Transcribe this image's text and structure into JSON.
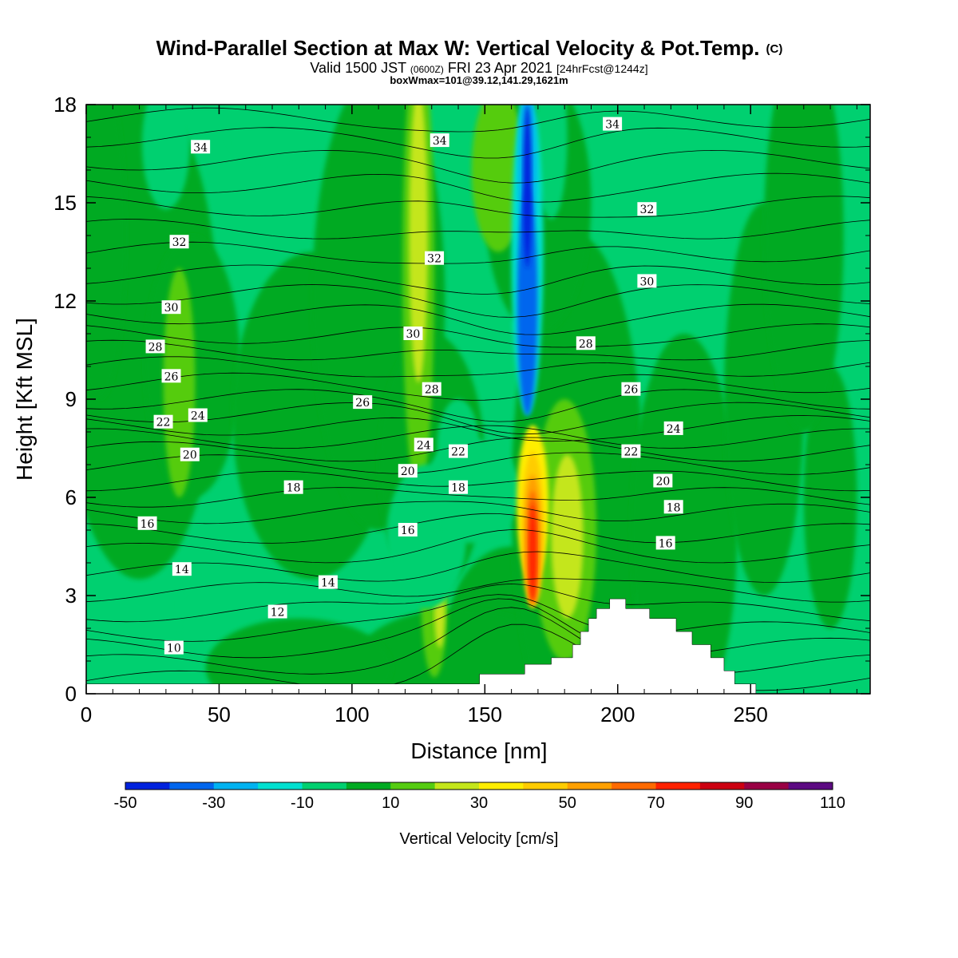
{
  "title": {
    "line1_main": "Wind-Parallel Section at Max W: Vertical Velocity & Pot.Temp.",
    "line1_suffix": "(C)",
    "line2_a": "Valid 1500 JST",
    "line2_b": "(0600Z)",
    "line2_c": "FRI 23 Apr 2021",
    "line2_d": "[24hrFcst@1244z]",
    "line3": "boxWmax=101@39.12,141.29,1621m"
  },
  "chart_data": {
    "type": "heatmap",
    "xlabel": "Distance [nm]",
    "ylabel": "Height [Kft MSL]",
    "xlim": [
      0,
      295
    ],
    "ylim": [
      0,
      18
    ],
    "xticks": [
      0,
      50,
      100,
      150,
      200,
      250
    ],
    "yticks": [
      0,
      3,
      6,
      9,
      12,
      15,
      18
    ],
    "colorbar": {
      "title": "Vertical Velocity [cm/s]",
      "tick_labels": [
        "-50",
        "-30",
        "-10",
        "10",
        "30",
        "50",
        "70",
        "90",
        "110"
      ],
      "levels": [
        -50,
        -40,
        -30,
        -20,
        -10,
        0,
        10,
        20,
        30,
        40,
        50,
        60,
        70,
        80,
        90,
        100,
        110
      ],
      "colors": [
        "#0022dd",
        "#0066ee",
        "#00b2f0",
        "#00e0d0",
        "#00d070",
        "#00aa22",
        "#55cc11",
        "#c4e61a",
        "#ffee00",
        "#ffcc00",
        "#ffa000",
        "#ff6a00",
        "#ff2200",
        "#cc0011",
        "#990044",
        "#5c0a82"
      ]
    },
    "theta_contour_labels": [
      {
        "value": "34",
        "x": 43,
        "y": 16.7
      },
      {
        "value": "34",
        "x": 133,
        "y": 16.9
      },
      {
        "value": "34",
        "x": 198,
        "y": 17.4
      },
      {
        "value": "32",
        "x": 35,
        "y": 13.8
      },
      {
        "value": "32",
        "x": 131,
        "y": 13.3
      },
      {
        "value": "32",
        "x": 211,
        "y": 14.8
      },
      {
        "value": "30",
        "x": 32,
        "y": 11.8
      },
      {
        "value": "30",
        "x": 123,
        "y": 11.0
      },
      {
        "value": "30",
        "x": 211,
        "y": 12.6
      },
      {
        "value": "28",
        "x": 26,
        "y": 10.6
      },
      {
        "value": "28",
        "x": 130,
        "y": 9.3
      },
      {
        "value": "28",
        "x": 188,
        "y": 10.7
      },
      {
        "value": "26",
        "x": 32,
        "y": 9.7
      },
      {
        "value": "26",
        "x": 104,
        "y": 8.9
      },
      {
        "value": "26",
        "x": 205,
        "y": 9.3
      },
      {
        "value": "24",
        "x": 42,
        "y": 8.5
      },
      {
        "value": "24",
        "x": 127,
        "y": 7.6
      },
      {
        "value": "24",
        "x": 221,
        "y": 8.1
      },
      {
        "value": "22",
        "x": 29,
        "y": 8.3
      },
      {
        "value": "22",
        "x": 140,
        "y": 7.4
      },
      {
        "value": "22",
        "x": 205,
        "y": 7.4
      },
      {
        "value": "20",
        "x": 39,
        "y": 7.3
      },
      {
        "value": "20",
        "x": 121,
        "y": 6.8
      },
      {
        "value": "20",
        "x": 217,
        "y": 6.5
      },
      {
        "value": "18",
        "x": 78,
        "y": 6.3
      },
      {
        "value": "18",
        "x": 140,
        "y": 6.3
      },
      {
        "value": "18",
        "x": 221,
        "y": 5.7
      },
      {
        "value": "16",
        "x": 23,
        "y": 5.2
      },
      {
        "value": "16",
        "x": 121,
        "y": 5.0
      },
      {
        "value": "16",
        "x": 218,
        "y": 4.6
      },
      {
        "value": "14",
        "x": 36,
        "y": 3.8
      },
      {
        "value": "14",
        "x": 91,
        "y": 3.4
      },
      {
        "value": "12",
        "x": 72,
        "y": 2.5
      },
      {
        "value": "10",
        "x": 33,
        "y": 1.4
      }
    ]
  }
}
